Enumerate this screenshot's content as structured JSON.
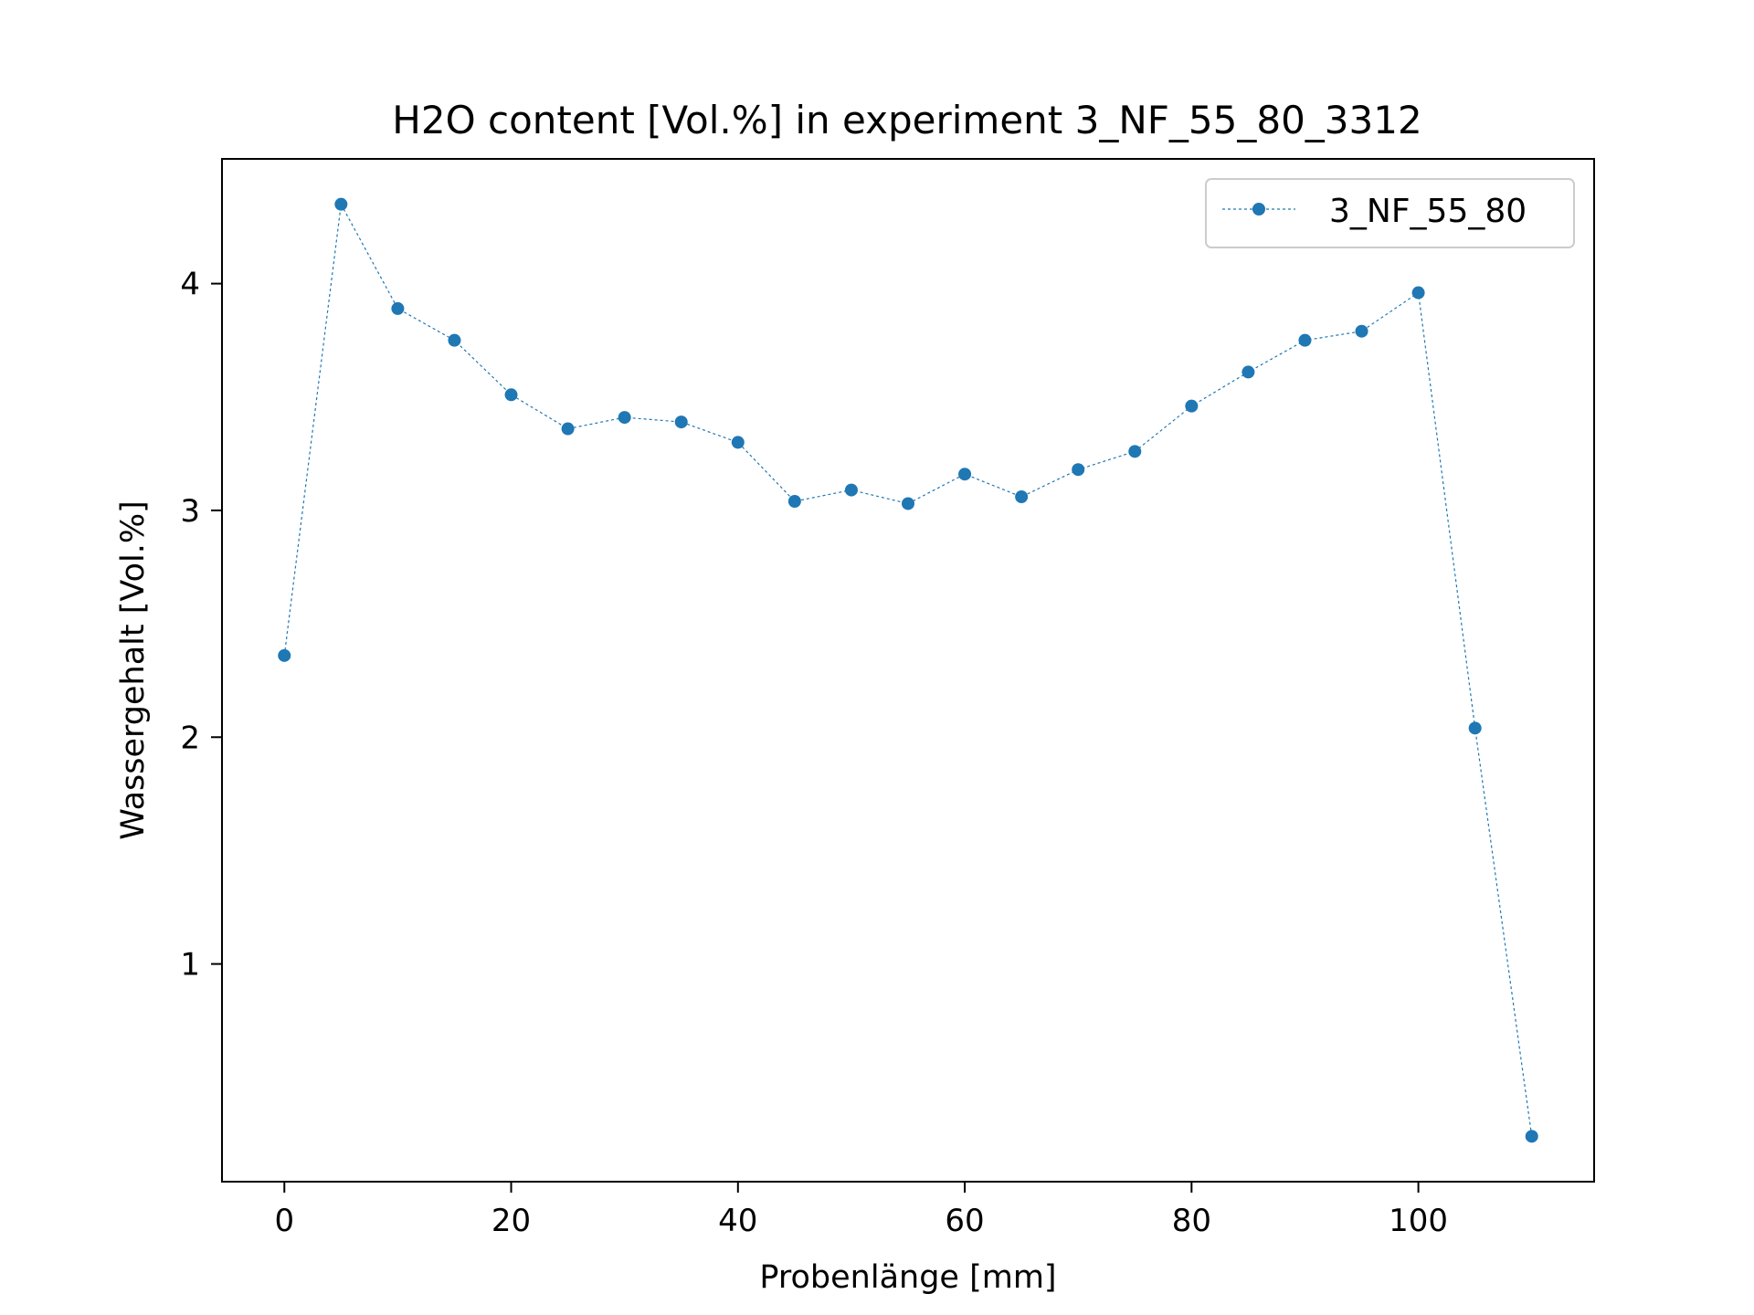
{
  "chart_data": {
    "type": "line",
    "title": "H2O content [Vol.%] in experiment 3_NF_55_80_3312",
    "xlabel": "Probenlänge [mm]",
    "ylabel": "Wassergehalt [Vol.%]",
    "xlim": [
      -5.5,
      115.5
    ],
    "ylim": [
      0.04,
      4.55
    ],
    "xticks": [
      0,
      20,
      40,
      60,
      80,
      100
    ],
    "yticks": [
      1,
      2,
      3,
      4
    ],
    "grid": false,
    "legend_position": "top-right",
    "color": "#1f77b4",
    "series": [
      {
        "name": "3_NF_55_80",
        "x": [
          0,
          5,
          10,
          15,
          20,
          25,
          30,
          35,
          40,
          45,
          50,
          55,
          60,
          65,
          70,
          75,
          80,
          85,
          90,
          95,
          100,
          105,
          110
        ],
        "y": [
          2.36,
          4.35,
          3.89,
          3.75,
          3.51,
          3.36,
          3.41,
          3.39,
          3.3,
          3.04,
          3.09,
          3.03,
          3.16,
          3.06,
          3.18,
          3.26,
          3.46,
          3.61,
          3.75,
          3.79,
          3.96,
          2.04,
          0.24
        ]
      }
    ]
  }
}
